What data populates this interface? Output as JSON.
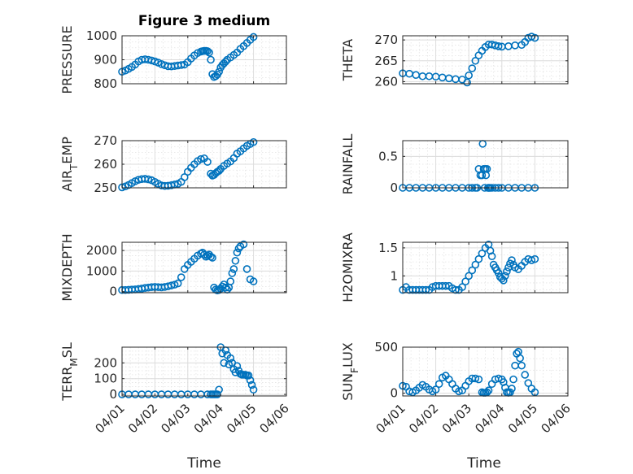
{
  "figure": {
    "title": "Figure 3 medium",
    "xlabel": "Time"
  },
  "chart_data": [
    {
      "type": "scatter",
      "ylabel": "PRESSURE",
      "ylim": [
        800,
        1000
      ],
      "yticks": [
        "800",
        "900",
        "1000"
      ],
      "xlim": [
        "04/01",
        "04/06"
      ],
      "x": [
        1.0,
        1.1,
        1.2,
        1.3,
        1.4,
        1.5,
        1.6,
        1.7,
        1.8,
        1.9,
        2.0,
        2.1,
        2.2,
        2.3,
        2.4,
        2.5,
        2.6,
        2.7,
        2.8,
        2.9,
        3.0,
        3.1,
        3.2,
        3.3,
        3.4,
        3.45,
        3.5,
        3.55,
        3.6,
        3.65,
        3.7,
        3.75,
        3.8,
        3.85,
        3.9,
        3.95,
        4.0,
        4.05,
        4.1,
        4.15,
        4.2,
        4.3,
        4.4,
        4.5,
        4.6,
        4.7,
        4.8,
        4.9,
        5.0
      ],
      "y": [
        850,
        855,
        862,
        870,
        880,
        893,
        900,
        902,
        900,
        897,
        893,
        888,
        882,
        877,
        873,
        872,
        874,
        876,
        878,
        880,
        890,
        905,
        918,
        928,
        934,
        936,
        937,
        937,
        936,
        930,
        900,
        840,
        828,
        832,
        838,
        850,
        868,
        878,
        885,
        892,
        900,
        910,
        920,
        930,
        945,
        957,
        970,
        983,
        995
      ]
    },
    {
      "type": "scatter",
      "ylabel": "THETA",
      "ylim": [
        259.5,
        271
      ],
      "yticks": [
        "260",
        "265",
        "270"
      ],
      "xlim": [
        "04/01",
        "04/06"
      ],
      "x": [
        1.0,
        1.2,
        1.4,
        1.6,
        1.8,
        2.0,
        2.2,
        2.4,
        2.6,
        2.8,
        2.95,
        3.0,
        3.1,
        3.2,
        3.3,
        3.4,
        3.5,
        3.6,
        3.7,
        3.8,
        3.9,
        4.0,
        4.2,
        4.4,
        4.6,
        4.7,
        4.8,
        4.9,
        5.0
      ],
      "y": [
        262.0,
        261.9,
        261.6,
        261.3,
        261.3,
        261.2,
        261.0,
        260.8,
        260.6,
        260.5,
        259.8,
        261.5,
        263.2,
        265.0,
        266.3,
        267.4,
        268.3,
        268.9,
        268.9,
        268.7,
        268.5,
        268.4,
        268.5,
        268.7,
        268.8,
        269.5,
        270.5,
        270.8,
        270.5
      ]
    },
    {
      "type": "scatter",
      "ylabel": "AIR_TEMP",
      "ylim": [
        250,
        270
      ],
      "yticks": [
        "250",
        "260",
        "270"
      ],
      "xlim": [
        "04/01",
        "04/06"
      ],
      "x": [
        1.0,
        1.1,
        1.2,
        1.3,
        1.4,
        1.5,
        1.6,
        1.7,
        1.8,
        1.9,
        2.0,
        2.1,
        2.2,
        2.3,
        2.4,
        2.5,
        2.6,
        2.7,
        2.8,
        2.9,
        3.0,
        3.1,
        3.2,
        3.3,
        3.4,
        3.5,
        3.6,
        3.7,
        3.75,
        3.8,
        3.85,
        3.9,
        3.95,
        4.0,
        4.1,
        4.2,
        4.3,
        4.4,
        4.5,
        4.6,
        4.7,
        4.8,
        4.9,
        5.0
      ],
      "y": [
        250.2,
        250.6,
        251.2,
        252.0,
        252.8,
        253.4,
        253.7,
        253.8,
        253.6,
        253.2,
        252.5,
        251.7,
        251.0,
        250.8,
        250.9,
        251.1,
        251.4,
        251.7,
        252.5,
        254.5,
        256.8,
        258.5,
        260.0,
        261.3,
        262.2,
        262.5,
        261.0,
        256.0,
        255.2,
        255.5,
        256.2,
        256.8,
        257.2,
        258.0,
        259.3,
        260.3,
        261.2,
        262.6,
        264.5,
        265.5,
        266.7,
        267.8,
        268.6,
        269.4
      ]
    },
    {
      "type": "scatter",
      "ylabel": "RAINFALL",
      "ylim": [
        0,
        0.75
      ],
      "yticks": [
        "0",
        "0.5"
      ],
      "xlim": [
        "04/01",
        "04/06"
      ],
      "x": [
        1.0,
        1.2,
        1.4,
        1.6,
        1.8,
        2.0,
        2.2,
        2.4,
        2.6,
        2.8,
        3.0,
        3.1,
        3.2,
        3.25,
        3.3,
        3.35,
        3.4,
        3.42,
        3.45,
        3.48,
        3.5,
        3.52,
        3.55,
        3.58,
        3.6,
        3.62,
        3.65,
        3.7,
        3.8,
        3.9,
        4.0,
        4.2,
        4.4,
        4.6,
        4.8,
        5.0
      ],
      "y": [
        0,
        0,
        0,
        0,
        0,
        0,
        0,
        0,
        0,
        0,
        0,
        0,
        0,
        0,
        0.3,
        0.2,
        0.2,
        0.7,
        0.3,
        0,
        0.3,
        0.2,
        0.3,
        0,
        0,
        0,
        0,
        0,
        0,
        0,
        0,
        0,
        0,
        0,
        0,
        0
      ]
    },
    {
      "type": "scatter",
      "ylabel": "MIXDEPTH",
      "ylim": [
        -50,
        2400
      ],
      "yticks": [
        "0",
        "1000",
        "2000"
      ],
      "xlim": [
        "04/01",
        "04/06"
      ],
      "x": [
        1.0,
        1.1,
        1.2,
        1.3,
        1.4,
        1.5,
        1.6,
        1.7,
        1.8,
        1.9,
        2.0,
        2.1,
        2.2,
        2.3,
        2.4,
        2.5,
        2.6,
        2.7,
        2.8,
        2.9,
        3.0,
        3.1,
        3.2,
        3.3,
        3.4,
        3.45,
        3.5,
        3.55,
        3.6,
        3.65,
        3.7,
        3.75,
        3.8,
        3.85,
        3.9,
        3.95,
        4.0,
        4.05,
        4.1,
        4.15,
        4.2,
        4.25,
        4.3,
        4.35,
        4.4,
        4.45,
        4.5,
        4.55,
        4.6,
        4.7,
        4.8,
        4.9,
        5.0
      ],
      "y": [
        80,
        80,
        90,
        100,
        110,
        130,
        150,
        180,
        200,
        220,
        230,
        220,
        210,
        230,
        260,
        300,
        340,
        400,
        700,
        1100,
        1300,
        1450,
        1600,
        1750,
        1850,
        1900,
        1800,
        1700,
        1750,
        1800,
        1700,
        1650,
        200,
        100,
        60,
        80,
        150,
        250,
        350,
        200,
        100,
        200,
        500,
        900,
        1100,
        1500,
        1900,
        2100,
        2200,
        2300,
        1100,
        600,
        500
      ]
    },
    {
      "type": "scatter",
      "ylabel": "H2OMIXRA",
      "ylim": [
        0.7,
        1.6
      ],
      "yticks": [
        "1",
        "1.5"
      ],
      "xlim": [
        "04/01",
        "04/06"
      ],
      "x": [
        1.0,
        1.1,
        1.2,
        1.3,
        1.4,
        1.5,
        1.6,
        1.7,
        1.8,
        1.9,
        2.0,
        2.1,
        2.2,
        2.3,
        2.4,
        2.5,
        2.6,
        2.7,
        2.8,
        2.9,
        3.0,
        3.1,
        3.2,
        3.3,
        3.4,
        3.5,
        3.6,
        3.65,
        3.7,
        3.75,
        3.8,
        3.85,
        3.9,
        3.95,
        4.0,
        4.05,
        4.1,
        4.15,
        4.2,
        4.25,
        4.3,
        4.35,
        4.4,
        4.5,
        4.6,
        4.7,
        4.8,
        4.9,
        5.0
      ],
      "y": [
        0.75,
        0.8,
        0.75,
        0.75,
        0.75,
        0.75,
        0.75,
        0.75,
        0.75,
        0.8,
        0.82,
        0.82,
        0.82,
        0.82,
        0.82,
        0.78,
        0.75,
        0.75,
        0.8,
        0.9,
        1.0,
        1.1,
        1.2,
        1.3,
        1.4,
        1.5,
        1.56,
        1.45,
        1.35,
        1.2,
        1.15,
        1.1,
        1.05,
        0.98,
        0.95,
        0.92,
        1.0,
        1.08,
        1.15,
        1.22,
        1.28,
        1.2,
        1.15,
        1.12,
        1.18,
        1.25,
        1.3,
        1.28,
        1.3
      ]
    },
    {
      "type": "scatter",
      "ylabel": "TERR_MSL",
      "ylim": [
        -10,
        300
      ],
      "yticks": [
        "0",
        "100",
        "200"
      ],
      "xlim": [
        "04/01",
        "04/06"
      ],
      "x": [
        1.0,
        1.2,
        1.4,
        1.6,
        1.8,
        2.0,
        2.2,
        2.4,
        2.6,
        2.8,
        3.0,
        3.2,
        3.4,
        3.6,
        3.7,
        3.75,
        3.8,
        3.85,
        3.9,
        3.95,
        4.0,
        4.05,
        4.1,
        4.15,
        4.2,
        4.25,
        4.3,
        4.35,
        4.4,
        4.45,
        4.5,
        4.55,
        4.6,
        4.65,
        4.7,
        4.75,
        4.8,
        4.85,
        4.9,
        4.95,
        5.0
      ],
      "y": [
        0,
        0,
        0,
        0,
        0,
        0,
        0,
        0,
        0,
        0,
        0,
        0,
        0,
        0,
        0,
        0,
        0,
        0,
        0,
        30,
        300,
        260,
        200,
        280,
        250,
        190,
        230,
        200,
        160,
        140,
        180,
        150,
        130,
        125,
        125,
        125,
        120,
        120,
        90,
        60,
        30
      ]
    },
    {
      "type": "scatter",
      "ylabel": "SUN_FLUX",
      "ylim": [
        -30,
        500
      ],
      "yticks": [
        "0",
        "500"
      ],
      "xlim": [
        "04/01",
        "04/06"
      ],
      "x": [
        1.0,
        1.1,
        1.2,
        1.3,
        1.4,
        1.5,
        1.6,
        1.7,
        1.8,
        1.9,
        2.0,
        2.1,
        2.2,
        2.3,
        2.4,
        2.5,
        2.6,
        2.7,
        2.8,
        2.9,
        3.0,
        3.1,
        3.2,
        3.3,
        3.4,
        3.45,
        3.5,
        3.55,
        3.6,
        3.7,
        3.8,
        3.9,
        4.0,
        4.05,
        4.1,
        4.15,
        4.2,
        4.25,
        4.3,
        4.35,
        4.4,
        4.45,
        4.5,
        4.55,
        4.6,
        4.7,
        4.8,
        4.9,
        5.0
      ],
      "y": [
        80,
        70,
        20,
        10,
        30,
        60,
        90,
        70,
        40,
        20,
        40,
        100,
        170,
        190,
        150,
        100,
        50,
        20,
        30,
        80,
        130,
        160,
        160,
        150,
        10,
        5,
        5,
        10,
        30,
        100,
        150,
        160,
        150,
        120,
        60,
        10,
        5,
        10,
        50,
        150,
        300,
        430,
        450,
        380,
        300,
        200,
        110,
        50,
        10
      ]
    }
  ],
  "xtick_labels": [
    "04/01",
    "04/02",
    "04/03",
    "04/04",
    "04/05",
    "04/06"
  ]
}
